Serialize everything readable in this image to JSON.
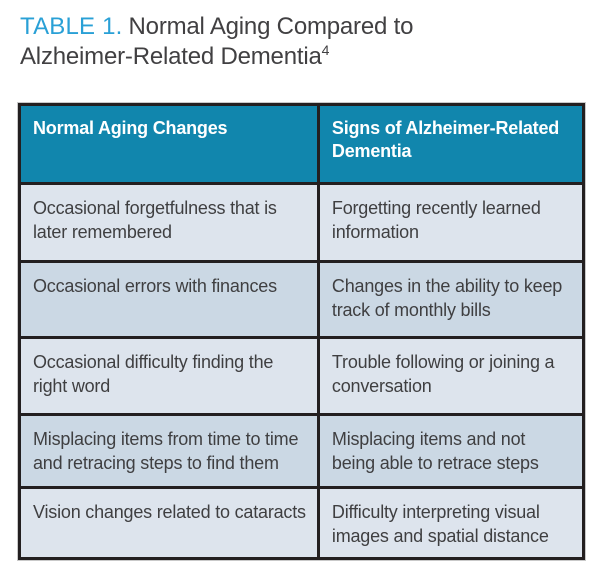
{
  "title": {
    "label": "TABLE 1.",
    "text": "Normal Aging Compared to Alzheimer-Related Dementia",
    "reference": "4"
  },
  "colors": {
    "accent": "#29a0d6",
    "title_text": "#414042",
    "header_bg": "#1186ad",
    "header_text": "#ffffff",
    "row_light": "#dde4ed",
    "row_dark": "#cbd8e4",
    "border": "#231f20",
    "cell_text": "#3f3f41"
  },
  "table": {
    "headers": [
      "Normal Aging Changes",
      "Signs of Alzheimer-Related Dementia"
    ],
    "rows": [
      {
        "normal_aging": "Occasional forgetfulness that is later remembered",
        "dementia": "Forgetting recently learned information"
      },
      {
        "normal_aging": "Occasional errors with finances",
        "dementia": "Changes in the ability to keep track of monthly bills"
      },
      {
        "normal_aging": "Occasional difficulty finding the right word",
        "dementia": "Trouble following or joining a conversation"
      },
      {
        "normal_aging": "Misplacing items from time to time and retracing steps to find them",
        "dementia": "Misplacing items and not being able to retrace steps"
      },
      {
        "normal_aging": "Vision changes related to cataracts",
        "dementia": "Difficulty interpreting visual images and spatial distance"
      }
    ]
  }
}
